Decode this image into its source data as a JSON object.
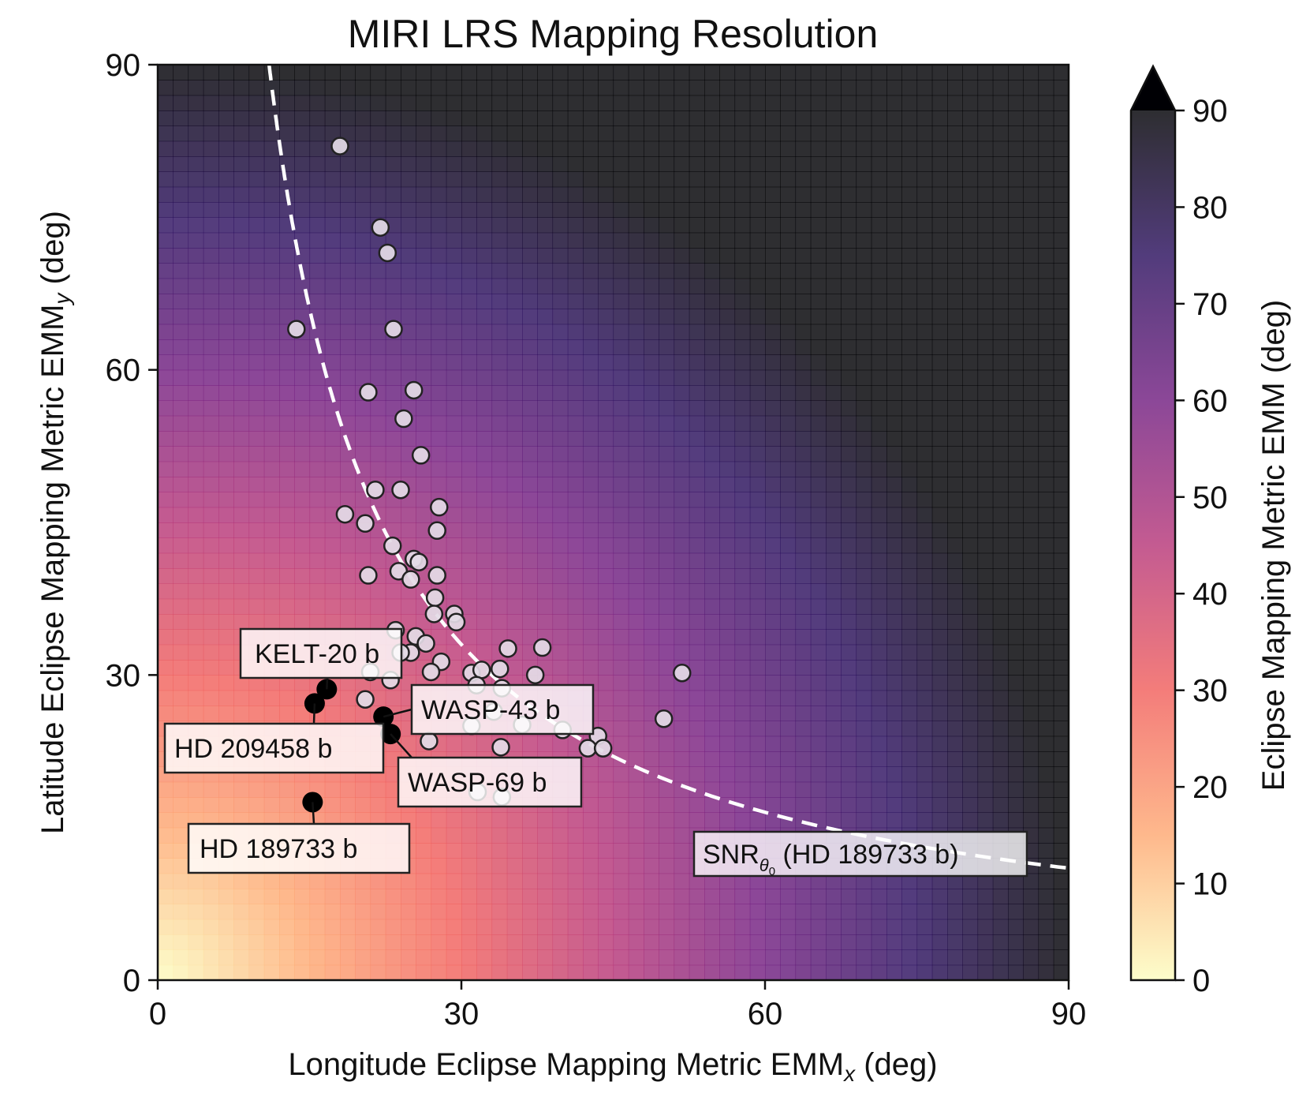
{
  "chart_data": {
    "type": "scatter",
    "title": "MIRI LRS Mapping Resolution",
    "xlabel": {
      "main": "Longitude Eclipse Mapping Metric EMM",
      "sub": "x",
      "unit": " (deg)"
    },
    "ylabel": {
      "main": "Latitude Eclipse Mapping Metric EMM",
      "sub": "y",
      "unit": " (deg)"
    },
    "xlim": [
      0,
      90
    ],
    "ylim": [
      0,
      90
    ],
    "xticks": [
      0,
      30,
      60,
      90
    ],
    "yticks": [
      0,
      30,
      60,
      90
    ],
    "background_field": "EMM = sqrt(EMMx^2 + EMMy^2), capped at 90",
    "colorbar": {
      "label": "Eclipse Mapping Metric EMM (deg)",
      "range": [
        0,
        90
      ],
      "ticks": [
        0,
        10,
        20,
        30,
        40,
        50,
        60,
        70,
        80,
        90
      ],
      "extend": "max",
      "colormap_stops": [
        "#fcfdbf",
        "#fea973",
        "#f1605d",
        "#b73779",
        "#721f81",
        "#2c115f",
        "#000004"
      ]
    },
    "snr_curve": {
      "label": {
        "main": "SNR",
        "sub": "θ",
        "subsub": "0",
        "rest": " (HD 189733 b)"
      },
      "style": "white dashed",
      "constant_product": 990
    },
    "series": [
      {
        "name": "planets",
        "marker": "light-lavender circle",
        "points": [
          [
            18,
            82
          ],
          [
            22,
            74
          ],
          [
            22.7,
            71.5
          ],
          [
            13.7,
            64
          ],
          [
            23.3,
            64
          ],
          [
            20.8,
            57.8
          ],
          [
            25.3,
            58
          ],
          [
            24.3,
            55.2
          ],
          [
            26,
            51.6
          ],
          [
            21.5,
            48.2
          ],
          [
            24,
            48.2
          ],
          [
            18.5,
            45.8
          ],
          [
            20.5,
            44.9
          ],
          [
            27.8,
            46.5
          ],
          [
            27.6,
            44.2
          ],
          [
            23.2,
            42.7
          ],
          [
            25.3,
            41.4
          ],
          [
            25.8,
            41.1
          ],
          [
            20.8,
            39.8
          ],
          [
            23.8,
            40.2
          ],
          [
            25,
            39.4
          ],
          [
            27.6,
            39.8
          ],
          [
            27.4,
            37.6
          ],
          [
            27.3,
            36
          ],
          [
            29.3,
            36
          ],
          [
            29.5,
            35.2
          ],
          [
            25.5,
            33.8
          ],
          [
            23.5,
            34.4
          ],
          [
            26.5,
            33.1
          ],
          [
            25,
            32.2
          ],
          [
            24,
            32.2
          ],
          [
            23,
            29.5
          ],
          [
            28,
            31.3
          ],
          [
            21,
            30.3
          ],
          [
            27,
            30.3
          ],
          [
            20.5,
            27.6
          ],
          [
            31,
            30.2
          ],
          [
            32,
            30.5
          ],
          [
            33.8,
            30.6
          ],
          [
            34.6,
            32.6
          ],
          [
            38,
            32.7
          ],
          [
            31.5,
            29
          ],
          [
            34,
            28.7
          ],
          [
            33.2,
            26.4
          ],
          [
            37.3,
            30
          ],
          [
            31,
            25
          ],
          [
            36,
            25.1
          ],
          [
            40,
            24.6
          ],
          [
            43.5,
            24
          ],
          [
            42.5,
            22.8
          ],
          [
            44,
            22.8
          ],
          [
            26.8,
            23.5
          ],
          [
            33.9,
            22.9
          ],
          [
            50,
            25.7
          ],
          [
            51.8,
            30.2
          ],
          [
            31.6,
            18.5
          ],
          [
            34,
            18
          ]
        ]
      },
      {
        "name": "highlighted",
        "marker": "black circle",
        "points": [
          [
            15.5,
            27.2
          ],
          [
            16.7,
            28.6
          ],
          [
            22.3,
            25.9
          ],
          [
            23,
            24.2
          ],
          [
            15.3,
            17.5
          ]
        ]
      }
    ],
    "annotations": [
      {
        "text": "KELT-20 b",
        "target": [
          16.7,
          28.6
        ]
      },
      {
        "text": "HD 209458 b",
        "target": [
          15.5,
          27.2
        ]
      },
      {
        "text": "WASP-43 b",
        "target": [
          22.3,
          25.9
        ]
      },
      {
        "text": "WASP-69 b",
        "target": [
          23,
          24.2
        ]
      },
      {
        "text": "HD 189733 b",
        "target": [
          15.3,
          17.5
        ]
      }
    ]
  }
}
